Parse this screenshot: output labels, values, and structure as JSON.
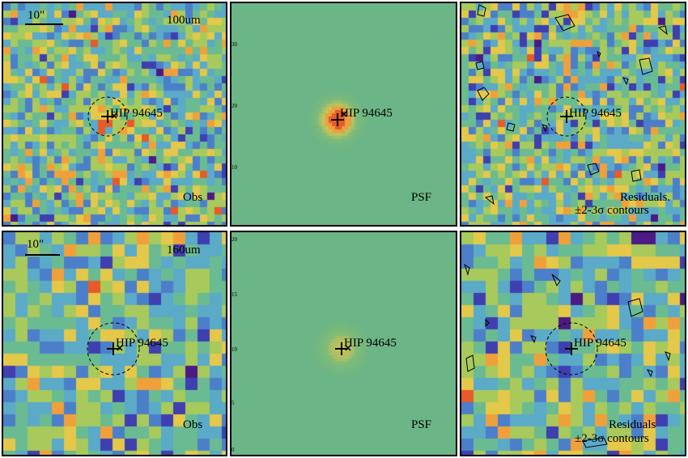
{
  "source": "HIP 94645",
  "scalebar_label": "10\"",
  "rows": [
    {
      "band": "100um",
      "panels": [
        {
          "kind": "obs",
          "caption": "Obs"
        },
        {
          "kind": "psf",
          "caption": "PSF",
          "axis_ticks": [
            "10",
            "20",
            "30"
          ]
        },
        {
          "kind": "residuals",
          "caption": [
            "Residuals.",
            "±2-3σ contours"
          ]
        }
      ]
    },
    {
      "band": "160um",
      "panels": [
        {
          "kind": "obs",
          "caption": "Obs"
        },
        {
          "kind": "psf",
          "caption": "PSF",
          "axis_ticks": [
            "0",
            "5",
            "10",
            "15",
            "20"
          ]
        },
        {
          "kind": "residuals",
          "caption": [
            "Residuals",
            "±2-3σ contours"
          ]
        }
      ]
    }
  ],
  "colors": {
    "psf_background": "#6bb586",
    "colormap": [
      "#4b1a84",
      "#3f3fb0",
      "#4c7fc9",
      "#5aaac8",
      "#6bbb92",
      "#a8c95c",
      "#e3c84a",
      "#f0a03a",
      "#e85a2a"
    ]
  }
}
